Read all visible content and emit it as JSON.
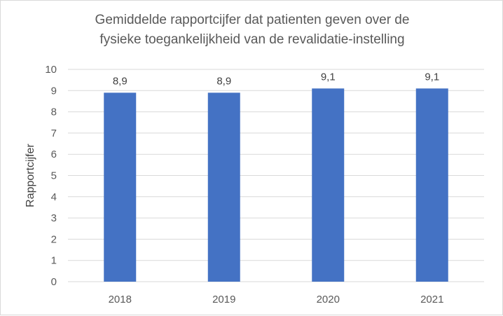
{
  "chart_data": {
    "type": "bar",
    "title_lines": [
      "Gemiddelde rapportcijfer dat patienten geven over de",
      "fysieke toegankelijkheid van de revalidatie-instelling"
    ],
    "categories": [
      "2018",
      "2019",
      "2020",
      "2021"
    ],
    "values": [
      8.9,
      8.9,
      9.1,
      9.1
    ],
    "data_labels": [
      "8,9",
      "8,9",
      "9,1",
      "9,1"
    ],
    "ylabel": "Rapportcijfer",
    "xlabel": "",
    "ylim": [
      0,
      10
    ],
    "yticks": [
      "0",
      "1",
      "2",
      "3",
      "4",
      "5",
      "6",
      "7",
      "8",
      "9",
      "10"
    ],
    "grid": true,
    "legend": "none",
    "colors": {
      "bar": "#4472c4",
      "grid": "#d9d9d9",
      "text": "#595959",
      "label": "#404040"
    }
  }
}
